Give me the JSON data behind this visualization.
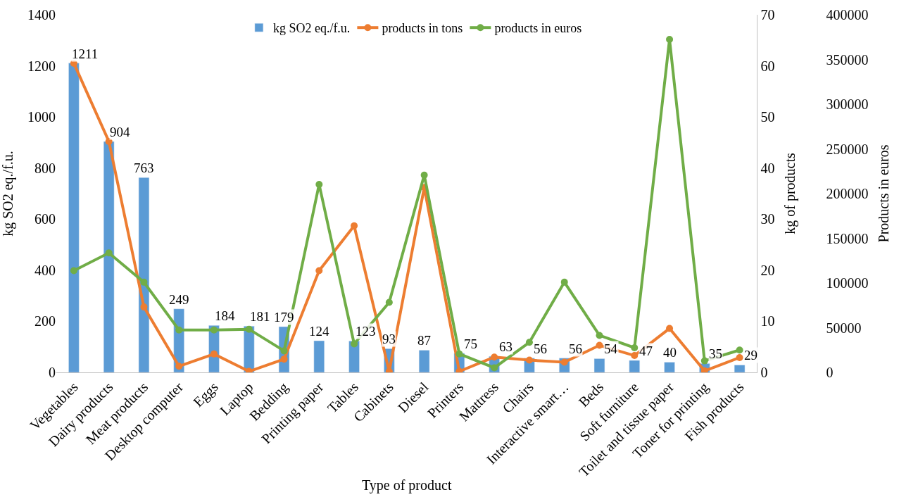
{
  "chart_data": {
    "type": "bar",
    "xlabel": "Type of product",
    "ylabel": "kg SO2 eq./f.u.",
    "y2label": "kg of products",
    "y3label": "Products in euros",
    "categories": [
      "Vegetables",
      "Dairy products",
      "Meat products",
      "Desktop computer",
      "Eggs",
      "Laptop",
      "Bedding",
      "Printing paper",
      "Tables",
      "Cabinets",
      "Diesel",
      "Printers",
      "Mattress",
      "Chairs",
      "Interactive smart…",
      "Beds",
      "Soft furniture",
      "Toilet and tissue paper",
      "Toner for printing",
      "Fish products"
    ],
    "series": [
      {
        "name": "kg SO2 eq./f.u.",
        "color": "#5b9bd5",
        "values": [
          1211,
          904,
          763,
          249,
          184,
          181,
          179,
          124,
          123,
          93,
          87,
          75,
          63,
          56,
          56,
          54,
          47,
          40,
          35,
          29
        ],
        "value_labels": [
          "1211",
          "904",
          "763",
          "249",
          "184",
          "181",
          "179",
          "124",
          "123",
          "93",
          "87",
          "75",
          "63",
          "56",
          "56",
          "54",
          "47",
          "40",
          "35",
          "29"
        ]
      },
      {
        "name": "products in tons",
        "type": "line",
        "axis": "y2",
        "color": "#ed7d31",
        "values": [
          60.5,
          45.2,
          12.8,
          1.2,
          3.6,
          0.2,
          2.6,
          19.9,
          28.7,
          0.2,
          36.2,
          0.2,
          3,
          2.4,
          2,
          5.3,
          3.3,
          8.6,
          0.3,
          2.9
        ]
      },
      {
        "name": "products in euros",
        "type": "line",
        "axis": "y3",
        "color": "#70ad47",
        "values": [
          113800,
          133600,
          100900,
          47400,
          47400,
          48300,
          24100,
          210300,
          31900,
          78400,
          220700,
          20700,
          5200,
          33600,
          100900,
          41400,
          27600,
          372400,
          12900,
          25000
        ]
      }
    ],
    "ylim": [
      0,
      1400
    ],
    "yticks": [
      0,
      200,
      400,
      600,
      800,
      1000,
      1200,
      1400
    ],
    "y2lim": [
      0,
      70
    ],
    "y2ticks": [
      0,
      10,
      20,
      30,
      40,
      50,
      60,
      70
    ],
    "y3lim": [
      0,
      400000
    ],
    "y3ticks": [
      0,
      50000,
      100000,
      150000,
      200000,
      250000,
      300000,
      350000,
      400000
    ],
    "marker": "circle",
    "line_style": "solid",
    "legend": "top"
  }
}
